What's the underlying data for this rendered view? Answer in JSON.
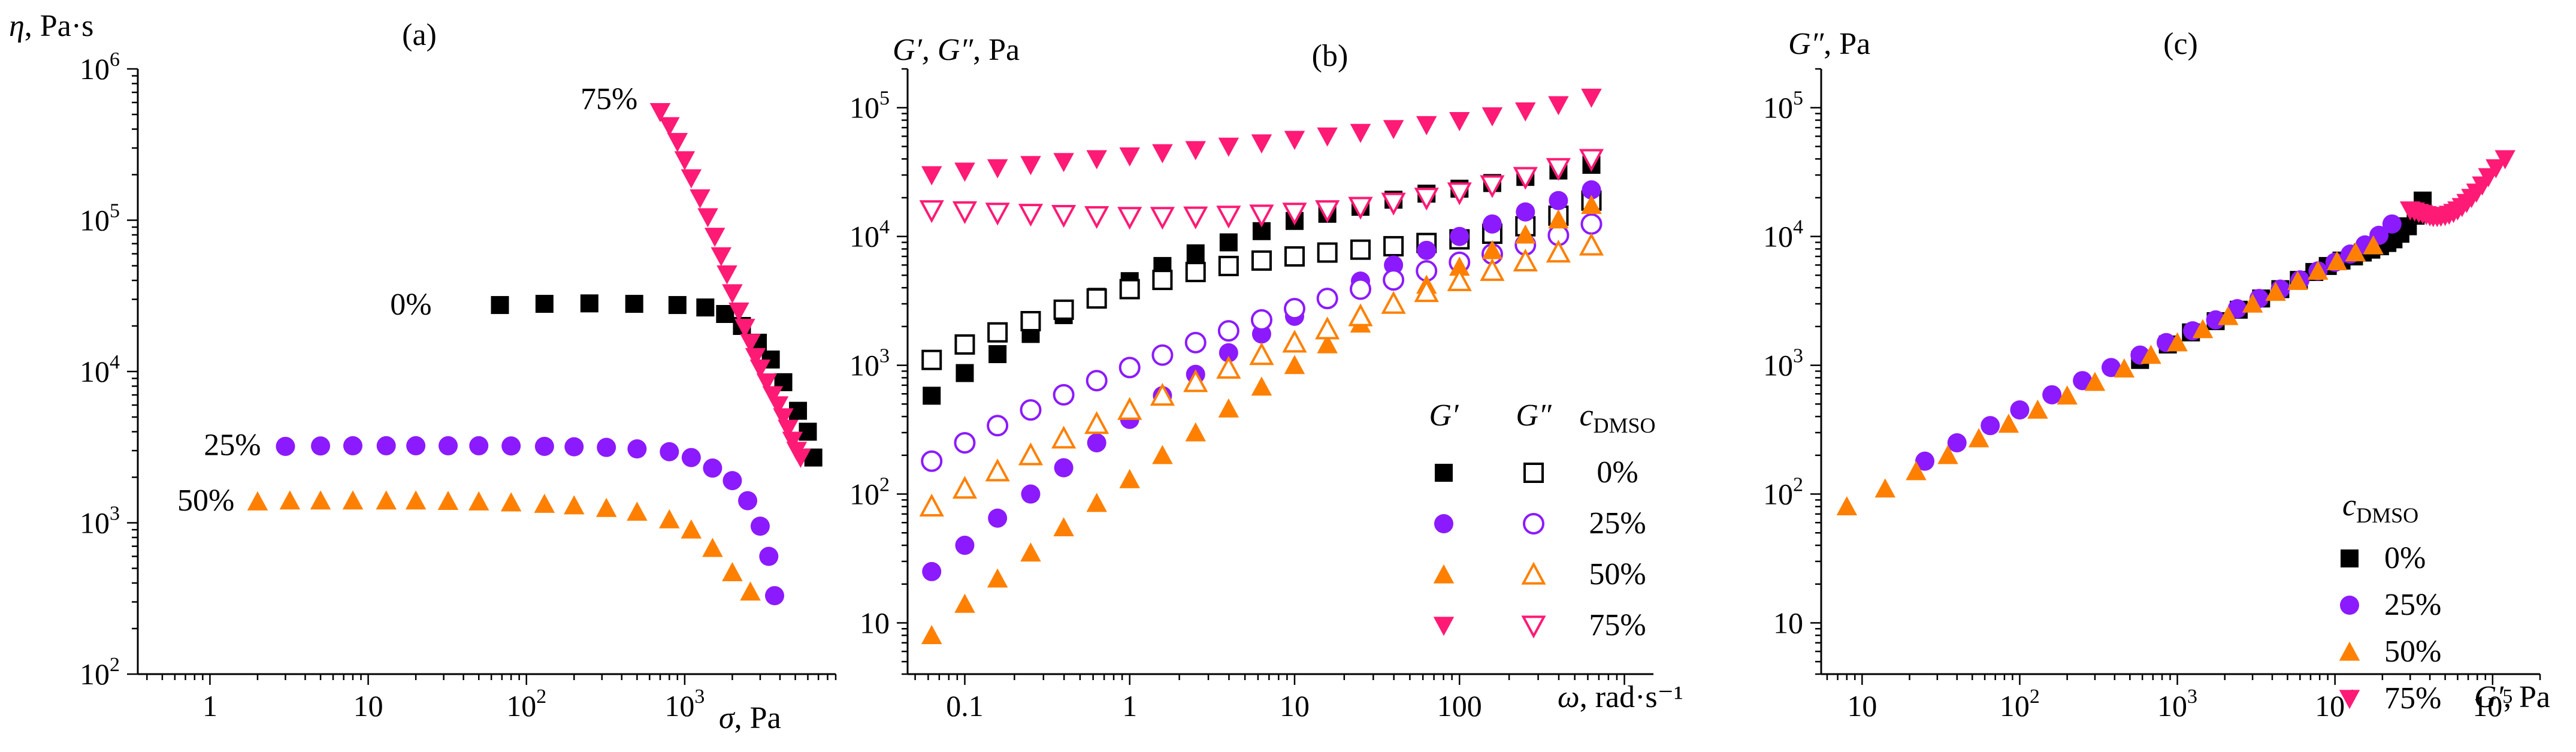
{
  "chart_data": [
    {
      "type": "scatter",
      "panel": "(a)",
      "xscale": "log",
      "yscale": "log",
      "xlim": [
        0.35,
        9000
      ],
      "ylim": [
        100,
        1000000
      ],
      "ylabel_main": "η",
      "ylabel_unit": ", Pa·s",
      "xlabel_main": "σ",
      "xlabel_unit": ", Pa",
      "xticks": [
        {
          "v": 1,
          "m": "1"
        },
        {
          "v": 10,
          "m": "10"
        },
        {
          "v": 100,
          "m": "10",
          "e": "2"
        },
        {
          "v": 1000,
          "m": "10",
          "e": "3"
        }
      ],
      "yticks": [
        {
          "v": 100,
          "m": "10",
          "e": "2"
        },
        {
          "v": 1000,
          "m": "10",
          "e": "3"
        },
        {
          "v": 10000,
          "m": "10",
          "e": "4"
        },
        {
          "v": 100000,
          "m": "10",
          "e": "5"
        },
        {
          "v": 1000000,
          "m": "10",
          "e": "6"
        }
      ],
      "series": [
        {
          "name": "0%",
          "color": "#000000",
          "marker": "square",
          "filled": true,
          "label": "0%",
          "label_anchor": [
            30,
            28000
          ],
          "label_side": "left",
          "x": [
            68,
            130,
            250,
            480,
            900,
            1350,
            1800,
            2300,
            2900,
            3500,
            4200,
            5200,
            6000,
            6500
          ],
          "y": [
            27500,
            28000,
            28200,
            28000,
            27500,
            26500,
            24000,
            20000,
            15500,
            12000,
            8500,
            5500,
            4000,
            2700
          ]
        },
        {
          "name": "25%",
          "color": "#8c1aff",
          "marker": "circle",
          "filled": true,
          "label": "25%",
          "label_anchor": [
            2.5,
            3300
          ],
          "label_side": "left",
          "x": [
            3,
            5,
            8,
            13,
            20,
            32,
            50,
            80,
            130,
            200,
            320,
            500,
            800,
            1100,
            1500,
            2000,
            2500,
            3000,
            3400,
            3700
          ],
          "y": [
            3200,
            3220,
            3230,
            3230,
            3230,
            3230,
            3230,
            3220,
            3200,
            3180,
            3150,
            3080,
            2950,
            2700,
            2300,
            1900,
            1400,
            950,
            600,
            330
          ]
        },
        {
          "name": "50%",
          "color": "#ff8000",
          "marker": "triangle",
          "filled": true,
          "label": "50%",
          "label_anchor": [
            1.7,
            1420
          ],
          "label_side": "left",
          "x": [
            2,
            3.2,
            5,
            8,
            13,
            20,
            32,
            50,
            80,
            130,
            200,
            320,
            500,
            800,
            1100,
            1500,
            2000,
            2600
          ],
          "y": [
            1380,
            1400,
            1400,
            1400,
            1400,
            1400,
            1390,
            1380,
            1360,
            1330,
            1300,
            1250,
            1180,
            1050,
            900,
            680,
            470,
            350
          ]
        },
        {
          "name": "75%",
          "color": "#ff1a75",
          "marker": "triangle-down",
          "filled": true,
          "label": "75%",
          "label_anchor": [
            600,
            640000
          ],
          "label_side": "left",
          "x": [
            700,
            800,
            900,
            1000,
            1100,
            1250,
            1400,
            1550,
            1700,
            1850,
            2000,
            2200,
            2400,
            2600,
            2800,
            3000,
            3300,
            3600,
            3900,
            4200,
            4500,
            4800,
            5100,
            5400
          ],
          "y": [
            520000,
            420000,
            330000,
            250000,
            190000,
            140000,
            105000,
            78000,
            58000,
            44000,
            33000,
            25000,
            19500,
            15500,
            12500,
            10500,
            8500,
            7000,
            6000,
            5000,
            4200,
            3500,
            3000,
            2700
          ]
        }
      ]
    },
    {
      "type": "scatter",
      "panel": "(b)",
      "xscale": "log",
      "yscale": "log",
      "xlim": [
        0.045,
        1500
      ],
      "ylim": [
        4,
        200000
      ],
      "ylabel_main": "G′, G″",
      "ylabel_unit": ", Pa",
      "xlabel_main": "ω",
      "xlabel_unit": ", rad·s⁻¹",
      "xticks": [
        {
          "v": 0.1,
          "m": "0.1"
        },
        {
          "v": 1,
          "m": "1"
        },
        {
          "v": 10,
          "m": "10"
        },
        {
          "v": 100,
          "m": "100"
        }
      ],
      "yticks": [
        {
          "v": 10,
          "m": "10"
        },
        {
          "v": 100,
          "m": "10",
          "e": "2"
        },
        {
          "v": 1000,
          "m": "10",
          "e": "3"
        },
        {
          "v": 10000,
          "m": "10",
          "e": "4"
        },
        {
          "v": 100000,
          "m": "10",
          "e": "5"
        }
      ],
      "legend": {
        "head_g1": "G′",
        "head_g2": "G″",
        "head_c": "c",
        "head_c_sub": "DMSO",
        "rows": [
          {
            "label": "0%"
          },
          {
            "label": "25%"
          },
          {
            "label": "50%"
          },
          {
            "label": "75%"
          }
        ]
      },
      "series": [
        {
          "name": "G′ 0%",
          "color": "#000000",
          "marker": "square",
          "filled": true,
          "x": [
            0.063,
            0.1,
            0.158,
            0.251,
            0.398,
            0.631,
            1,
            1.58,
            2.51,
            3.98,
            6.31,
            10,
            15.8,
            25.1,
            39.8,
            63.1,
            100,
            158,
            251,
            398,
            631
          ],
          "y": [
            580,
            870,
            1220,
            1750,
            2450,
            3400,
            4500,
            5900,
            7400,
            9000,
            11000,
            13200,
            15000,
            17000,
            19300,
            21500,
            23500,
            26000,
            29000,
            32500,
            36000
          ]
        },
        {
          "name": "G″ 0%",
          "color": "#000000",
          "marker": "square",
          "filled": false,
          "x": [
            0.063,
            0.1,
            0.158,
            0.251,
            0.398,
            0.631,
            1,
            1.58,
            2.51,
            3.98,
            6.31,
            10,
            15.8,
            25.1,
            39.8,
            63.1,
            100,
            158,
            251,
            398,
            631
          ],
          "y": [
            1100,
            1450,
            1800,
            2200,
            2700,
            3300,
            3900,
            4600,
            5300,
            5900,
            6500,
            7000,
            7500,
            7900,
            8400,
            8900,
            9500,
            10500,
            12000,
            14500,
            19000
          ]
        },
        {
          "name": "G′ 25%",
          "color": "#8c1aff",
          "marker": "circle",
          "filled": true,
          "x": [
            0.063,
            0.1,
            0.158,
            0.251,
            0.398,
            0.631,
            1,
            1.58,
            2.51,
            3.98,
            6.31,
            10,
            15.8,
            25.1,
            39.8,
            63.1,
            100,
            158,
            251,
            398,
            631
          ],
          "y": [
            25,
            40,
            65,
            100,
            160,
            250,
            380,
            580,
            850,
            1250,
            1750,
            2400,
            3300,
            4500,
            6000,
            7800,
            10000,
            12500,
            15500,
            19000,
            23000
          ]
        },
        {
          "name": "G″ 25%",
          "color": "#8c1aff",
          "marker": "circle",
          "filled": false,
          "x": [
            0.063,
            0.1,
            0.158,
            0.251,
            0.398,
            0.631,
            1,
            1.58,
            2.51,
            3.98,
            6.31,
            10,
            15.8,
            25.1,
            39.8,
            63.1,
            100,
            158,
            251,
            398,
            631
          ],
          "y": [
            180,
            250,
            340,
            450,
            590,
            760,
            960,
            1200,
            1500,
            1850,
            2250,
            2750,
            3300,
            3900,
            4600,
            5400,
            6300,
            7300,
            8600,
            10200,
            12500
          ]
        },
        {
          "name": "G′ 50%",
          "color": "#ff8000",
          "marker": "triangle",
          "filled": true,
          "x": [
            0.063,
            0.1,
            0.158,
            0.251,
            0.398,
            0.631,
            1,
            1.58,
            2.51,
            3.98,
            6.31,
            10,
            15.8,
            25.1,
            39.8,
            63.1,
            100,
            158,
            251,
            398,
            631
          ],
          "y": [
            8,
            14,
            22,
            35,
            55,
            85,
            130,
            200,
            300,
            460,
            680,
            1000,
            1450,
            2100,
            3000,
            4200,
            5800,
            7800,
            10300,
            13500,
            17500
          ]
        },
        {
          "name": "G″ 50%",
          "color": "#ff8000",
          "marker": "triangle",
          "filled": false,
          "x": [
            0.063,
            0.1,
            0.158,
            0.251,
            0.398,
            0.631,
            1,
            1.58,
            2.51,
            3.98,
            6.31,
            10,
            15.8,
            25.1,
            39.8,
            63.1,
            100,
            158,
            251,
            398,
            631
          ],
          "y": [
            80,
            110,
            150,
            200,
            270,
            350,
            450,
            580,
            740,
            940,
            1200,
            1500,
            1900,
            2400,
            3000,
            3700,
            4500,
            5400,
            6400,
            7500,
            8500
          ]
        },
        {
          "name": "G′ 75%",
          "color": "#ff1a75",
          "marker": "triangle-down",
          "filled": true,
          "x": [
            0.063,
            0.1,
            0.158,
            0.251,
            0.398,
            0.631,
            1,
            1.58,
            2.51,
            3.98,
            6.31,
            10,
            15.8,
            25.1,
            39.8,
            63.1,
            100,
            158,
            251,
            398,
            631
          ],
          "y": [
            30000,
            32000,
            34000,
            36000,
            38000,
            40000,
            42000,
            44500,
            47000,
            50000,
            53000,
            56500,
            60000,
            64000,
            68500,
            73500,
            79000,
            86000,
            94000,
            105000,
            120000
          ]
        },
        {
          "name": "G″ 75%",
          "color": "#ff1a75",
          "marker": "triangle-down",
          "filled": false,
          "x": [
            0.063,
            0.1,
            0.158,
            0.251,
            0.398,
            0.631,
            1,
            1.58,
            2.51,
            3.98,
            6.31,
            10,
            15.8,
            25.1,
            39.8,
            63.1,
            100,
            158,
            251,
            398,
            631
          ],
          "y": [
            16000,
            15700,
            15300,
            15000,
            14700,
            14400,
            14200,
            14200,
            14300,
            14500,
            14800,
            15300,
            16000,
            17000,
            18300,
            20000,
            22000,
            25000,
            29000,
            34000,
            40000
          ]
        }
      ]
    },
    {
      "type": "scatter",
      "panel": "(c)",
      "xscale": "log",
      "yscale": "log",
      "xlim": [
        5.5,
        200000
      ],
      "ylim": [
        4,
        200000
      ],
      "ylabel_main": "G″",
      "ylabel_unit": ", Pa",
      "xlabel_main": "G′",
      "xlabel_unit": ", Pa",
      "xticks": [
        {
          "v": 10,
          "m": "10"
        },
        {
          "v": 100,
          "m": "10",
          "e": "2"
        },
        {
          "v": 1000,
          "m": "10",
          "e": "3"
        },
        {
          "v": 10000,
          "m": "10",
          "e": "4"
        },
        {
          "v": 100000,
          "m": "10",
          "e": "5"
        }
      ],
      "yticks": [
        {
          "v": 10,
          "m": "10"
        },
        {
          "v": 100,
          "m": "10",
          "e": "2"
        },
        {
          "v": 1000,
          "m": "10",
          "e": "3"
        },
        {
          "v": 10000,
          "m": "10",
          "e": "4"
        },
        {
          "v": 100000,
          "m": "10",
          "e": "5"
        }
      ],
      "legend": {
        "head_c": "c",
        "head_c_sub": "DMSO",
        "rows": [
          {
            "label": "0%"
          },
          {
            "label": "25%"
          },
          {
            "label": "50%"
          },
          {
            "label": "75%"
          }
        ]
      },
      "series": [
        {
          "name": "0%",
          "color": "#000000",
          "marker": "square",
          "filled": true,
          "x": [
            580,
            870,
            1220,
            1750,
            2450,
            3400,
            4500,
            5900,
            7400,
            9000,
            11000,
            13200,
            15000,
            17000,
            19300,
            21500,
            23500,
            26000,
            29000,
            32500,
            36000
          ],
          "y": [
            1100,
            1450,
            1800,
            2200,
            2700,
            3300,
            3900,
            4600,
            5300,
            5900,
            6500,
            7000,
            7500,
            7900,
            8400,
            8900,
            9500,
            10500,
            12000,
            14500,
            19000
          ]
        },
        {
          "name": "25%",
          "color": "#8c1aff",
          "marker": "circle",
          "filled": true,
          "x": [
            25,
            40,
            65,
            100,
            160,
            250,
            380,
            580,
            850,
            1250,
            1750,
            2400,
            3300,
            4500,
            6000,
            7800,
            10000,
            12500,
            15500,
            19000,
            23000
          ],
          "y": [
            180,
            250,
            340,
            450,
            590,
            760,
            960,
            1200,
            1500,
            1850,
            2250,
            2750,
            3300,
            3900,
            4600,
            5400,
            6300,
            7300,
            8600,
            10200,
            12500
          ]
        },
        {
          "name": "50%",
          "color": "#ff8000",
          "marker": "triangle",
          "filled": true,
          "x": [
            8,
            14,
            22,
            35,
            55,
            85,
            130,
            200,
            300,
            460,
            680,
            1000,
            1450,
            2100,
            3000,
            4200,
            5800,
            7800,
            10300,
            13500,
            17500
          ],
          "y": [
            80,
            110,
            150,
            200,
            270,
            350,
            450,
            580,
            740,
            940,
            1200,
            1500,
            1900,
            2400,
            3000,
            3700,
            4500,
            5400,
            6400,
            7500,
            8500
          ]
        },
        {
          "name": "75%",
          "color": "#ff1a75",
          "marker": "triangle-down",
          "filled": true,
          "x": [
            30000,
            32000,
            34000,
            36000,
            38000,
            40000,
            42000,
            44500,
            47000,
            50000,
            53000,
            56500,
            60000,
            64000,
            68500,
            73500,
            79000,
            86000,
            94000,
            105000,
            120000
          ],
          "y": [
            16000,
            15700,
            15300,
            15000,
            14700,
            14400,
            14200,
            14200,
            14300,
            14500,
            14800,
            15300,
            16000,
            17000,
            18300,
            20000,
            22000,
            25000,
            29000,
            34000,
            40000
          ]
        }
      ]
    }
  ]
}
